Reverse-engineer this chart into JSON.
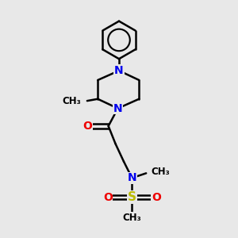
{
  "bg_color": "#e8e8e8",
  "bond_color": "#000000",
  "N_color": "#0000ee",
  "O_color": "#ee0000",
  "S_color": "#bbbb00",
  "bond_width": 1.8,
  "font_size": 10,
  "fig_width": 3.0,
  "fig_height": 3.0,
  "dpi": 100,
  "xlim": [
    0,
    10
  ],
  "ylim": [
    0,
    10
  ]
}
